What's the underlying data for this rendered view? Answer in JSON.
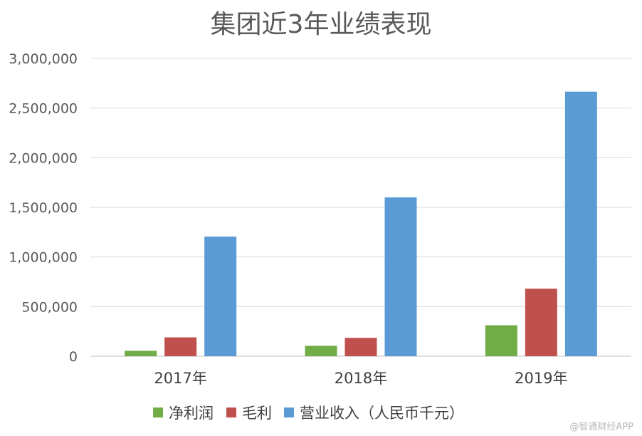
{
  "chart_data": {
    "type": "bar",
    "title": "集团近3年业绩表现",
    "categories": [
      "2017年",
      "2018年",
      "2019年"
    ],
    "series": [
      {
        "name": "净利润",
        "color": "#70ad47",
        "values": [
          55000,
          105000,
          312000
        ]
      },
      {
        "name": "毛利",
        "color": "#c0504d",
        "values": [
          190000,
          185000,
          680000
        ]
      },
      {
        "name": "营业收入（人民币千元）",
        "color": "#5b9bd5",
        "values": [
          1205000,
          1600000,
          2665000
        ]
      }
    ],
    "ylim": [
      0,
      3000000
    ],
    "yticks": [
      0,
      500000,
      1000000,
      1500000,
      2000000,
      2500000,
      3000000
    ],
    "ytick_labels": [
      "0",
      "500,000",
      "1,000,000",
      "1,500,000",
      "2,000,000",
      "2,500,000",
      "3,000,000"
    ],
    "grid": true,
    "legend_position": "bottom"
  },
  "watermark": "@智通财经APP"
}
